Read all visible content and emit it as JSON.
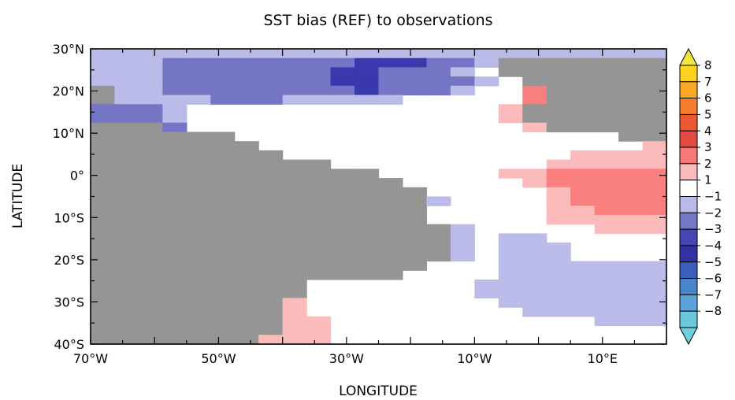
{
  "chart_data": {
    "type": "heatmap",
    "title": "SST bias (REF) to observations",
    "xlabel": "LONGITUDE",
    "ylabel": "LATITUDE",
    "xlim": [
      -70,
      20
    ],
    "ylim": [
      -40,
      30
    ],
    "grid_resolution_deg": [
      3.75,
      5.0
    ],
    "x_ticks": [
      {
        "value": -70,
        "label": "70°W"
      },
      {
        "value": -50,
        "label": "50°W"
      },
      {
        "value": -30,
        "label": "30°W"
      },
      {
        "value": -10,
        "label": "10°W"
      },
      {
        "value": 10,
        "label": "10°E"
      }
    ],
    "y_ticks": [
      {
        "value": 30,
        "label": "30°N"
      },
      {
        "value": 20,
        "label": "20°N"
      },
      {
        "value": 10,
        "label": "10°N"
      },
      {
        "value": 0,
        "label": "0°"
      },
      {
        "value": -10,
        "label": "10°S"
      },
      {
        "value": -20,
        "label": "20°S"
      },
      {
        "value": -30,
        "label": "30°S"
      },
      {
        "value": -40,
        "label": "40°S"
      }
    ],
    "colorbar": {
      "labels": [
        "8",
        "7",
        "6",
        "5",
        "4",
        "3",
        "2",
        "1",
        "−1",
        "−2",
        "−3",
        "−4",
        "−5",
        "−6",
        "−7",
        "−8"
      ],
      "colors": [
        "#ffd21f",
        "#f8aa26",
        "#f47e2c",
        "#ea5a35",
        "#e44a40",
        "#f87a78",
        "#fbbcbc",
        "#ffffff",
        "#babaea",
        "#7779c6",
        "#4747b3",
        "#3232a6",
        "#3b5fba",
        "#4a85cc",
        "#5ba3d8",
        "#6cc6dc"
      ],
      "top_triangle_color": "#f0e63a",
      "bottom_triangle_color": "#6dd0e0"
    },
    "land_color": "#959595",
    "legend": {
      "W": "#ffffff",
      "a": "#bbbbe9",
      "b": "#7475c4",
      "c": "#3939ad",
      "p": "#fbbbbb",
      "q": "#fa7f7f",
      "r": "#e5463f",
      "o": "#f47e2c",
      "y": "#e9e235",
      "L": "#959595"
    },
    "grid_rows": [
      "aaaaaaaaaaaaaaaaaaaaaaaaaaaaa",
      "aaabbbbbbbbcccbbaLLLLLLLLLLLL",
      "aaabbbbbbbccbbbaWLLLLLLLLLLLL",
      "aaabbbbbbbccbbbbaWLLLLLLLLLLLL",
      "LaabbbbbbbbcbbbaWWqLLLLLLLLLLL",
      "LaaaabbbaaaaaWWWWWqLLLLLLLLLLL",
      "bbbaWWWWWWWWWWWWWpLLLLLLLLLLLL",
      "bbbaWWWWWWWWWWWWWpLLLLLLLLLLLL",
      "LLLbWWWWWWWWWWWWWWpLLLLLLLLLLL",
      "LLLLLLWWWWWWWWWWWWWWWWLLLLLLLL",
      "LLLLLLLWWWWWWWWWWWWWWWWpLLLLLL",
      "LLLLLLLLWWWWWWWWWWWWppppppqLLLLL",
      "LLLLLLLLLLWWWWWWWWWppppppppqLLLL",
      "LLLLLLLLLLLLWWWWWppqqqqqrrrrLLL",
      "LLLLLLLLLLLLLWWWWWpqqqqqrrrrrLL",
      "LLLLLLLLLLLLLLWWWWWpqqqqrrrrrLL",
      "LLLLLLLLLLLLLLaWWWWpqqqqrrrooLL",
      "LLLLLLLLLLLLLLWWWWWppqqqqrooo",
      "LLLLLLLLLLLLLLWWWWWpppppprooo",
      "LLLLLLLLLLLLLLLaWWWWWppppqroo",
      "LLLLLLLLLLLLLLLaWaaWWWWWWpryL",
      "LLLLLLLLLLLLLLLaWaaaWWWWWWpryL",
      "LLLLLLLLLLLLLLLaWaaaWWWWWWWroL",
      "LLLLLLLLLLLLLLWWWaaaaaaaaWWpoy",
      "LLLLLLLLLLLLLWWWWaaaaaaaaaWpoyL",
      "LLLLLLLLLWWWWWWWaaaaaaaaaaaWpoL",
      "LLLLLLLLLWWWWWWWaaaaaaaaaaaWWrL",
      "LLLLLLLLpWWWWWWWWaaaaaaaaaaaWWpq",
      "LLLLLLLLpWWWWWWWWWaaaaaaaaaaWWWq",
      "LLLLLLLLppWWWWWWWWWWWaaaaaaaaWWp",
      "LLLLLLLLppWWWWWWWWWWWWWWaaaaaaWp",
      "LLLLLLLpppWWWWWWWWWWWWWWWWWaabbbb"
    ]
  }
}
